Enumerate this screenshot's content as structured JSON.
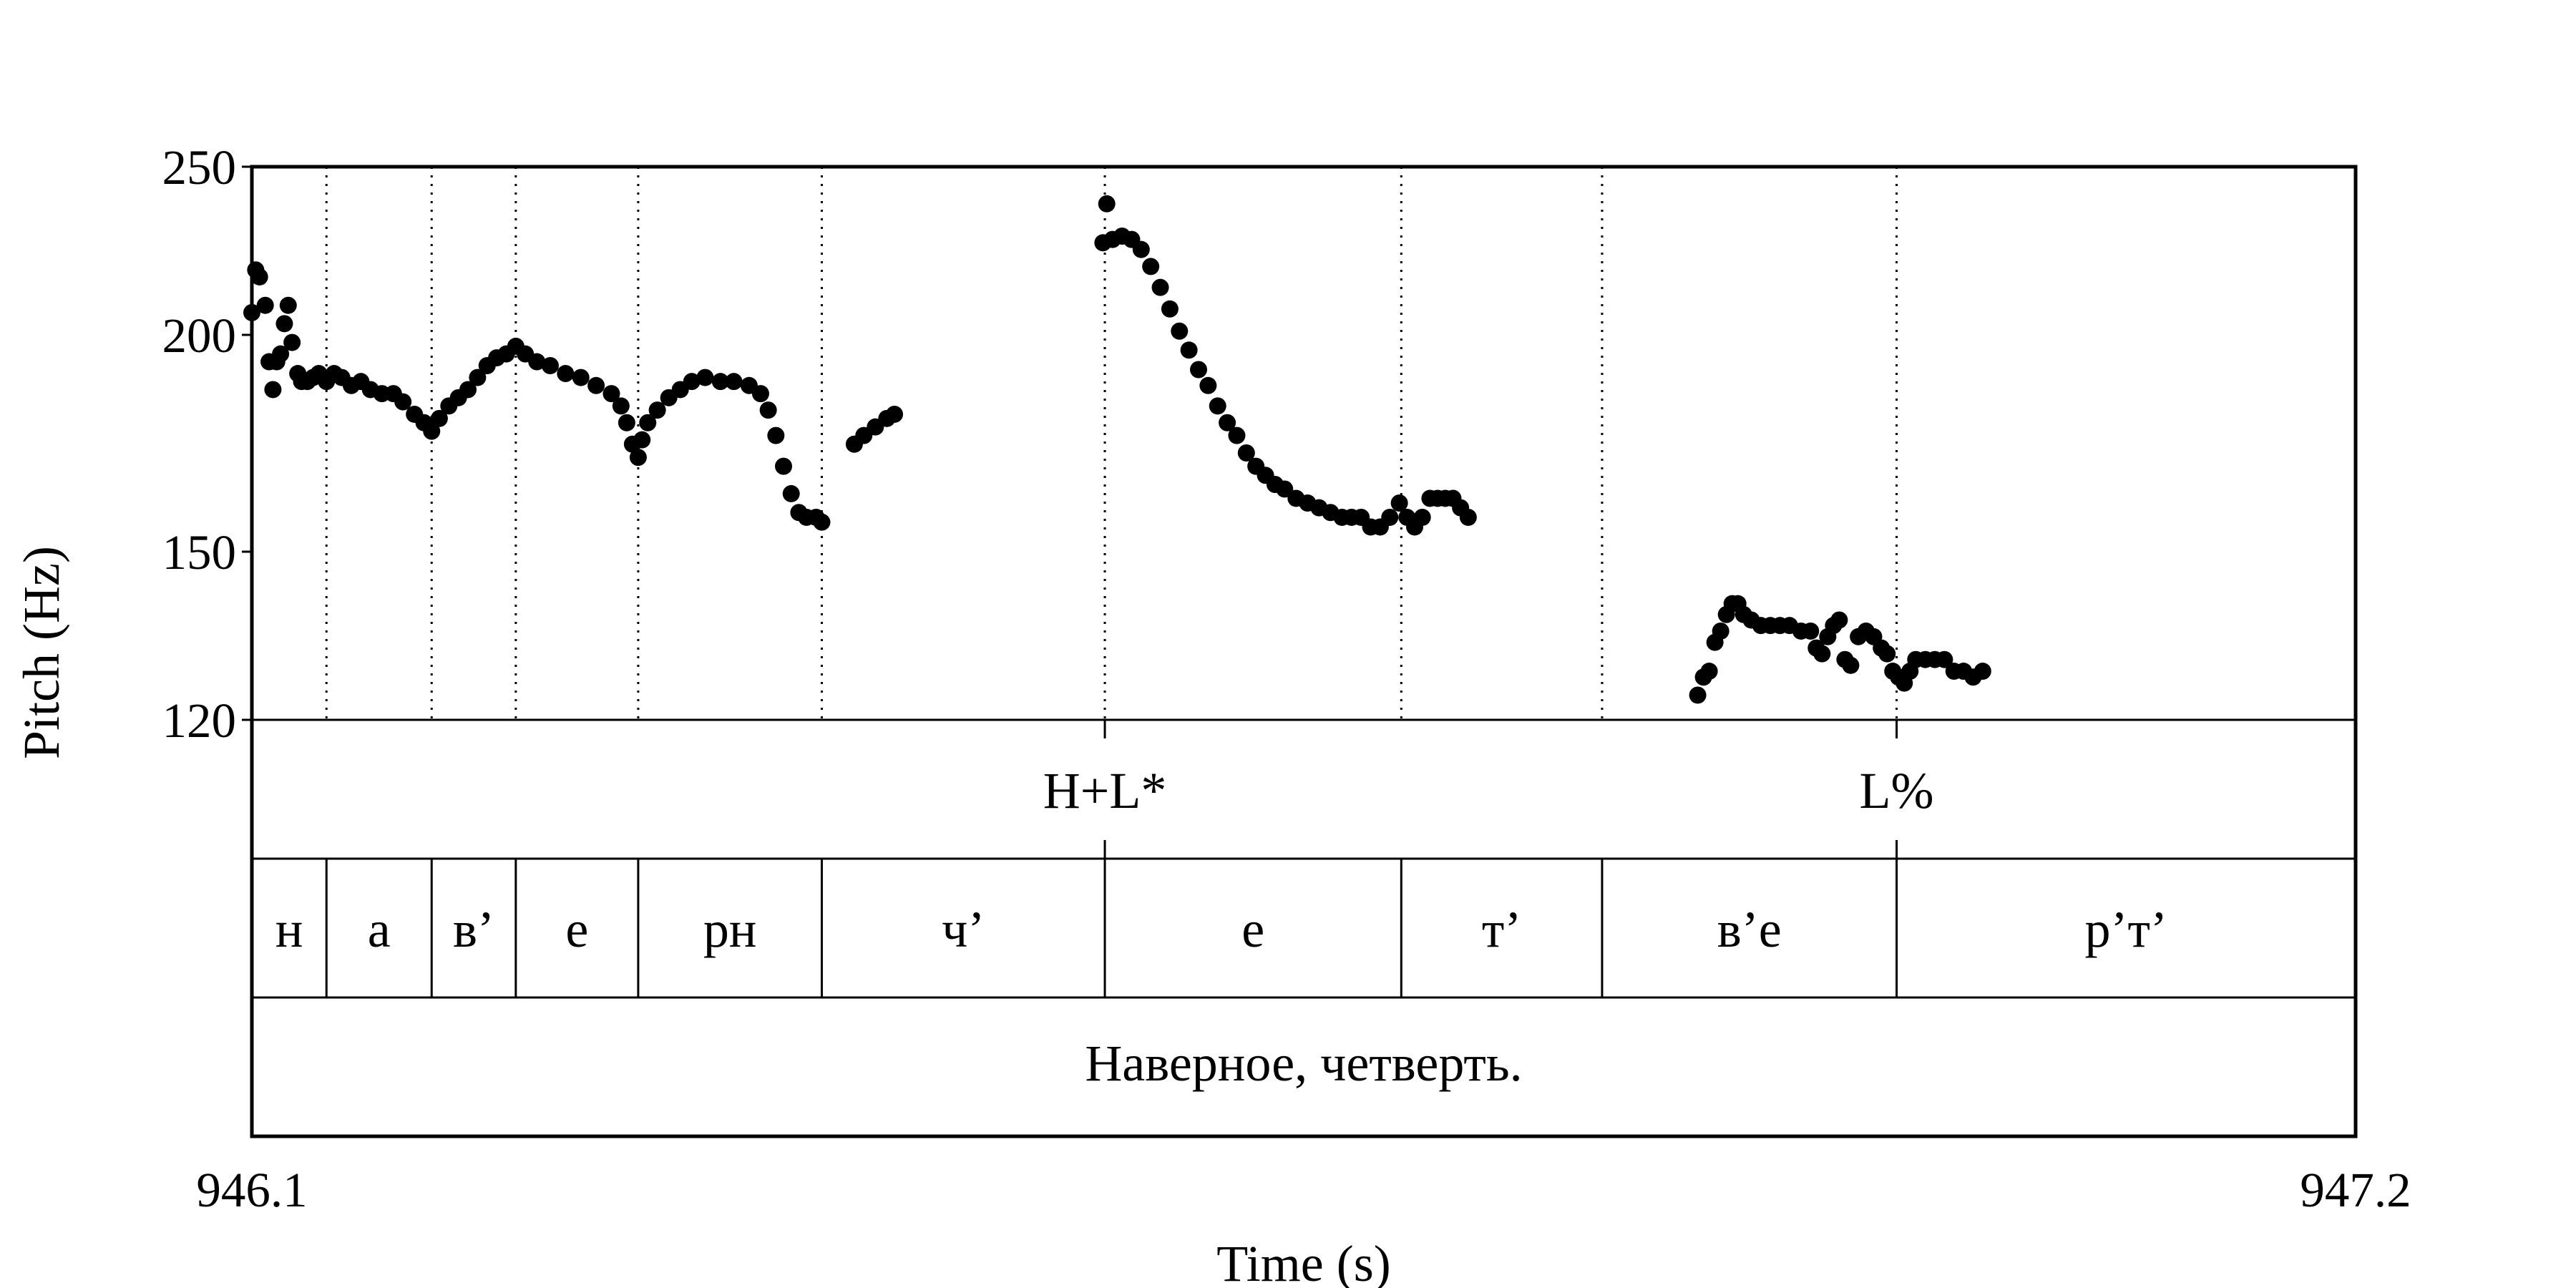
{
  "chart_data": {
    "type": "scatter",
    "xlabel": "Time (s)",
    "ylabel": "Pitch (Hz)",
    "xlim": [
      946.1,
      947.2
    ],
    "ylim": [
      120,
      250
    ],
    "x_ticks": [
      "946.1",
      "947.2"
    ],
    "y_ticks": [
      {
        "value": 120,
        "label": "120"
      },
      {
        "value": 150,
        "label": "150"
      },
      {
        "value": 200,
        "label": "200"
      },
      {
        "value": 250,
        "label": "250"
      }
    ],
    "y_scale": "log",
    "marker_color": "#000000",
    "tones": [
      {
        "t": 946.546,
        "label": "H+L*"
      },
      {
        "t": 946.96,
        "label": "L%"
      }
    ],
    "segments": [
      {
        "start": 946.1,
        "end": 946.139,
        "label": "н"
      },
      {
        "start": 946.139,
        "end": 946.194,
        "label": "а"
      },
      {
        "start": 946.194,
        "end": 946.238,
        "label": "в’"
      },
      {
        "start": 946.238,
        "end": 946.302,
        "label": "е"
      },
      {
        "start": 946.302,
        "end": 946.398,
        "label": "рн"
      },
      {
        "start": 946.398,
        "end": 946.546,
        "label": "ч’"
      },
      {
        "start": 946.546,
        "end": 946.701,
        "label": "е"
      },
      {
        "start": 946.701,
        "end": 946.806,
        "label": "т’"
      },
      {
        "start": 946.806,
        "end": 946.96,
        "label": "в’е"
      },
      {
        "start": 946.96,
        "end": 947.2,
        "label": "р’т’"
      }
    ],
    "sentence": "Наверное, четверть.",
    "pitch_points": [
      [
        946.1,
        206
      ],
      [
        946.102,
        218
      ],
      [
        946.104,
        216
      ],
      [
        946.107,
        208
      ],
      [
        946.109,
        193
      ],
      [
        946.111,
        186
      ],
      [
        946.113,
        193
      ],
      [
        946.115,
        195
      ],
      [
        946.117,
        203
      ],
      [
        946.119,
        208
      ],
      [
        946.121,
        198
      ],
      [
        946.124,
        190
      ],
      [
        946.126,
        188
      ],
      [
        946.129,
        188
      ],
      [
        946.132,
        189
      ],
      [
        946.135,
        190
      ],
      [
        946.139,
        188
      ],
      [
        946.143,
        190
      ],
      [
        946.147,
        189
      ],
      [
        946.152,
        187
      ],
      [
        946.157,
        188
      ],
      [
        946.162,
        186
      ],
      [
        946.168,
        185
      ],
      [
        946.174,
        185
      ],
      [
        946.179,
        183
      ],
      [
        946.185,
        180
      ],
      [
        946.19,
        178
      ],
      [
        946.194,
        176
      ],
      [
        946.198,
        179
      ],
      [
        946.203,
        182
      ],
      [
        946.208,
        184
      ],
      [
        946.213,
        186
      ],
      [
        946.218,
        189
      ],
      [
        946.223,
        192
      ],
      [
        946.228,
        194
      ],
      [
        946.233,
        195
      ],
      [
        946.238,
        197
      ],
      [
        946.243,
        195
      ],
      [
        946.249,
        193
      ],
      [
        946.256,
        192
      ],
      [
        946.264,
        190
      ],
      [
        946.272,
        189
      ],
      [
        946.28,
        187
      ],
      [
        946.288,
        185
      ],
      [
        946.293,
        182
      ],
      [
        946.296,
        178
      ],
      [
        946.299,
        173
      ],
      [
        946.302,
        170
      ],
      [
        946.304,
        174
      ],
      [
        946.307,
        178
      ],
      [
        946.312,
        181
      ],
      [
        946.318,
        184
      ],
      [
        946.324,
        186
      ],
      [
        946.33,
        188
      ],
      [
        946.337,
        189
      ],
      [
        946.345,
        188
      ],
      [
        946.352,
        188
      ],
      [
        946.36,
        187
      ],
      [
        946.366,
        185
      ],
      [
        946.37,
        181
      ],
      [
        946.374,
        175
      ],
      [
        946.378,
        168
      ],
      [
        946.382,
        162
      ],
      [
        946.386,
        158
      ],
      [
        946.39,
        157
      ],
      [
        946.395,
        157
      ],
      [
        946.398,
        156
      ],
      [
        946.415,
        173
      ],
      [
        946.42,
        175
      ],
      [
        946.426,
        177
      ],
      [
        946.432,
        179
      ],
      [
        946.436,
        180
      ],
      [
        946.545,
        226
      ],
      [
        946.547,
        238
      ],
      [
        946.55,
        227
      ],
      [
        946.555,
        228
      ],
      [
        946.56,
        227
      ],
      [
        946.565,
        224
      ],
      [
        946.57,
        219
      ],
      [
        946.575,
        213
      ],
      [
        946.58,
        207
      ],
      [
        946.585,
        201
      ],
      [
        946.59,
        196
      ],
      [
        946.595,
        191
      ],
      [
        946.6,
        187
      ],
      [
        946.605,
        182
      ],
      [
        946.61,
        178
      ],
      [
        946.615,
        175
      ],
      [
        946.62,
        171
      ],
      [
        946.625,
        168
      ],
      [
        946.63,
        166
      ],
      [
        946.635,
        164
      ],
      [
        946.64,
        163
      ],
      [
        946.646,
        161
      ],
      [
        946.652,
        160
      ],
      [
        946.658,
        159
      ],
      [
        946.664,
        158
      ],
      [
        946.67,
        157
      ],
      [
        946.675,
        157
      ],
      [
        946.68,
        157
      ],
      [
        946.685,
        155
      ],
      [
        946.69,
        155
      ],
      [
        946.695,
        157
      ],
      [
        946.7,
        160
      ],
      [
        946.704,
        157
      ],
      [
        946.708,
        155
      ],
      [
        946.712,
        157
      ],
      [
        946.716,
        161
      ],
      [
        946.72,
        161
      ],
      [
        946.724,
        161
      ],
      [
        946.728,
        161
      ],
      [
        946.732,
        159
      ],
      [
        946.736,
        157
      ],
      [
        946.856,
        124
      ],
      [
        946.859,
        127
      ],
      [
        946.862,
        128
      ],
      [
        946.865,
        133
      ],
      [
        946.868,
        135
      ],
      [
        946.871,
        138
      ],
      [
        946.874,
        140
      ],
      [
        946.877,
        140
      ],
      [
        946.88,
        138
      ],
      [
        946.884,
        137
      ],
      [
        946.889,
        136
      ],
      [
        946.894,
        136
      ],
      [
        946.899,
        136
      ],
      [
        946.904,
        136
      ],
      [
        946.91,
        135
      ],
      [
        946.915,
        135
      ],
      [
        946.918,
        132
      ],
      [
        946.921,
        131
      ],
      [
        946.924,
        134
      ],
      [
        946.927,
        136
      ],
      [
        946.93,
        137
      ],
      [
        946.933,
        130
      ],
      [
        946.936,
        129
      ],
      [
        946.94,
        134
      ],
      [
        946.944,
        135
      ],
      [
        946.948,
        134
      ],
      [
        946.952,
        132
      ],
      [
        946.955,
        131
      ],
      [
        946.958,
        128
      ],
      [
        946.961,
        127
      ],
      [
        946.964,
        126
      ],
      [
        946.967,
        128
      ],
      [
        946.97,
        130
      ],
      [
        946.975,
        130
      ],
      [
        946.98,
        130
      ],
      [
        946.985,
        130
      ],
      [
        946.99,
        128
      ],
      [
        946.995,
        128
      ],
      [
        947.0,
        127
      ],
      [
        947.005,
        128
      ]
    ]
  }
}
